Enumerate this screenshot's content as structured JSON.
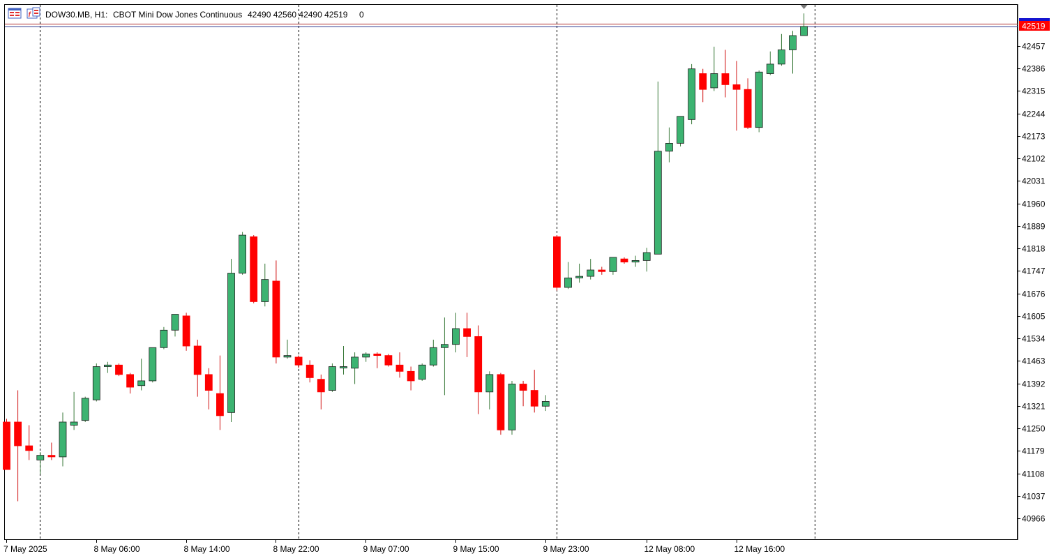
{
  "header": {
    "symbol": "DOW30.MB, H1:",
    "description": "CBOT Mini Dow Jones Continuous",
    "ohlc": "42490 42560 42490 42519",
    "extra": "0",
    "icon_left": "chart-window-icon",
    "icon_right": "indicators-icon"
  },
  "price_badge": {
    "label": "42519",
    "color": "#ff0000"
  },
  "chart_data": {
    "type": "candlestick",
    "title": "",
    "xlabel": "",
    "ylabel": "",
    "ylim": [
      40900,
      42580
    ],
    "grid": false,
    "colors": {
      "up": "#3cb371",
      "down": "#ff0000",
      "outline": "#000000"
    },
    "y_ticks": [
      42457,
      42386,
      42315,
      42244,
      42173,
      42102,
      42031,
      41960,
      41889,
      41818,
      41747,
      41676,
      41605,
      41534,
      41463,
      41392,
      41321,
      41250,
      41179,
      41108,
      41037,
      40966
    ],
    "x_labels": [
      {
        "label": "7 May 2025",
        "index": 0
      },
      {
        "label": "8 May 06:00",
        "index": 8
      },
      {
        "label": "8 May 14:00",
        "index": 16
      },
      {
        "label": "8 May 22:00",
        "index": 24
      },
      {
        "label": "9 May 07:00",
        "index": 32
      },
      {
        "label": "9 May 15:00",
        "index": 40
      },
      {
        "label": "9 May 23:00",
        "index": 48
      },
      {
        "label": "12 May 08:00",
        "index": 57
      },
      {
        "label": "12 May 16:00",
        "index": 65
      }
    ],
    "day_separators": [
      3,
      26,
      49,
      72
    ],
    "last_price": 42519,
    "candles": [
      {
        "o": 41270,
        "h": 41280,
        "l": 41120,
        "c": 41120
      },
      {
        "o": 41270,
        "h": 41370,
        "l": 41020,
        "c": 41195
      },
      {
        "o": 41195,
        "h": 41260,
        "l": 41150,
        "c": 41180
      },
      {
        "o": 41150,
        "h": 41175,
        "l": 41105,
        "c": 41165
      },
      {
        "o": 41165,
        "h": 41205,
        "l": 41150,
        "c": 41160
      },
      {
        "o": 41160,
        "h": 41300,
        "l": 41130,
        "c": 41270
      },
      {
        "o": 41260,
        "h": 41365,
        "l": 41245,
        "c": 41270
      },
      {
        "o": 41275,
        "h": 41350,
        "l": 41270,
        "c": 41345
      },
      {
        "o": 41340,
        "h": 41455,
        "l": 41335,
        "c": 41445
      },
      {
        "o": 41445,
        "h": 41460,
        "l": 41425,
        "c": 41450
      },
      {
        "o": 41450,
        "h": 41455,
        "l": 41415,
        "c": 41420
      },
      {
        "o": 41420,
        "h": 41425,
        "l": 41360,
        "c": 41380
      },
      {
        "o": 41385,
        "h": 41470,
        "l": 41370,
        "c": 41400
      },
      {
        "o": 41400,
        "h": 41505,
        "l": 41395,
        "c": 41505
      },
      {
        "o": 41505,
        "h": 41570,
        "l": 41500,
        "c": 41560
      },
      {
        "o": 41560,
        "h": 41610,
        "l": 41540,
        "c": 41610
      },
      {
        "o": 41605,
        "h": 41615,
        "l": 41495,
        "c": 41510
      },
      {
        "o": 41510,
        "h": 41530,
        "l": 41350,
        "c": 41420
      },
      {
        "o": 41420,
        "h": 41440,
        "l": 41310,
        "c": 41370
      },
      {
        "o": 41360,
        "h": 41480,
        "l": 41245,
        "c": 41290
      },
      {
        "o": 41300,
        "h": 41785,
        "l": 41270,
        "c": 41740
      },
      {
        "o": 41740,
        "h": 41870,
        "l": 41735,
        "c": 41860
      },
      {
        "o": 41855,
        "h": 41860,
        "l": 41645,
        "c": 41650
      },
      {
        "o": 41650,
        "h": 41770,
        "l": 41635,
        "c": 41720
      },
      {
        "o": 41715,
        "h": 41780,
        "l": 41455,
        "c": 41475
      },
      {
        "o": 41475,
        "h": 41530,
        "l": 41470,
        "c": 41480
      },
      {
        "o": 41475,
        "h": 41480,
        "l": 41440,
        "c": 41450
      },
      {
        "o": 41450,
        "h": 41465,
        "l": 41395,
        "c": 41410
      },
      {
        "o": 41405,
        "h": 41420,
        "l": 41310,
        "c": 41365
      },
      {
        "o": 41370,
        "h": 41455,
        "l": 41365,
        "c": 41445
      },
      {
        "o": 41445,
        "h": 41510,
        "l": 41420,
        "c": 41445
      },
      {
        "o": 41440,
        "h": 41490,
        "l": 41390,
        "c": 41475
      },
      {
        "o": 41475,
        "h": 41490,
        "l": 41460,
        "c": 41485
      },
      {
        "o": 41485,
        "h": 41490,
        "l": 41440,
        "c": 41480
      },
      {
        "o": 41480,
        "h": 41485,
        "l": 41445,
        "c": 41450
      },
      {
        "o": 41450,
        "h": 41490,
        "l": 41410,
        "c": 41430
      },
      {
        "o": 41430,
        "h": 41445,
        "l": 41370,
        "c": 41400
      },
      {
        "o": 41405,
        "h": 41455,
        "l": 41400,
        "c": 41450
      },
      {
        "o": 41450,
        "h": 41530,
        "l": 41445,
        "c": 41505
      },
      {
        "o": 41505,
        "h": 41600,
        "l": 41355,
        "c": 41515
      },
      {
        "o": 41515,
        "h": 41615,
        "l": 41490,
        "c": 41565
      },
      {
        "o": 41565,
        "h": 41615,
        "l": 41475,
        "c": 41540
      },
      {
        "o": 41540,
        "h": 41575,
        "l": 41295,
        "c": 41365
      },
      {
        "o": 41365,
        "h": 41430,
        "l": 41310,
        "c": 41420
      },
      {
        "o": 41420,
        "h": 41425,
        "l": 41230,
        "c": 41245
      },
      {
        "o": 41245,
        "h": 41400,
        "l": 41230,
        "c": 41390
      },
      {
        "o": 41390,
        "h": 41400,
        "l": 41320,
        "c": 41370
      },
      {
        "o": 41370,
        "h": 41435,
        "l": 41300,
        "c": 41320
      },
      {
        "o": 41320,
        "h": 41355,
        "l": 41305,
        "c": 41335
      },
      {
        "o": 41855,
        "h": 41860,
        "l": 41685,
        "c": 41695
      },
      {
        "o": 41695,
        "h": 41775,
        "l": 41690,
        "c": 41725
      },
      {
        "o": 41725,
        "h": 41770,
        "l": 41710,
        "c": 41730
      },
      {
        "o": 41730,
        "h": 41785,
        "l": 41720,
        "c": 41750
      },
      {
        "o": 41750,
        "h": 41760,
        "l": 41735,
        "c": 41745
      },
      {
        "o": 41745,
        "h": 41790,
        "l": 41735,
        "c": 41790
      },
      {
        "o": 41785,
        "h": 41790,
        "l": 41770,
        "c": 41775
      },
      {
        "o": 41775,
        "h": 41795,
        "l": 41760,
        "c": 41780
      },
      {
        "o": 41780,
        "h": 41820,
        "l": 41745,
        "c": 41805
      },
      {
        "o": 41800,
        "h": 42345,
        "l": 41800,
        "c": 42125
      },
      {
        "o": 42125,
        "h": 42200,
        "l": 42090,
        "c": 42150
      },
      {
        "o": 42150,
        "h": 42235,
        "l": 42140,
        "c": 42235
      },
      {
        "o": 42225,
        "h": 42400,
        "l": 42210,
        "c": 42385
      },
      {
        "o": 42370,
        "h": 42385,
        "l": 42280,
        "c": 42320
      },
      {
        "o": 42325,
        "h": 42455,
        "l": 42315,
        "c": 42370
      },
      {
        "o": 42370,
        "h": 42445,
        "l": 42295,
        "c": 42335
      },
      {
        "o": 42335,
        "h": 42410,
        "l": 42190,
        "c": 42320
      },
      {
        "o": 42320,
        "h": 42355,
        "l": 42195,
        "c": 42200
      },
      {
        "o": 42200,
        "h": 42380,
        "l": 42185,
        "c": 42375
      },
      {
        "o": 42370,
        "h": 42440,
        "l": 42365,
        "c": 42400
      },
      {
        "o": 42400,
        "h": 42495,
        "l": 42395,
        "c": 42445
      },
      {
        "o": 42445,
        "h": 42505,
        "l": 42370,
        "c": 42490
      },
      {
        "o": 42490,
        "h": 42560,
        "l": 42490,
        "c": 42519
      }
    ]
  }
}
